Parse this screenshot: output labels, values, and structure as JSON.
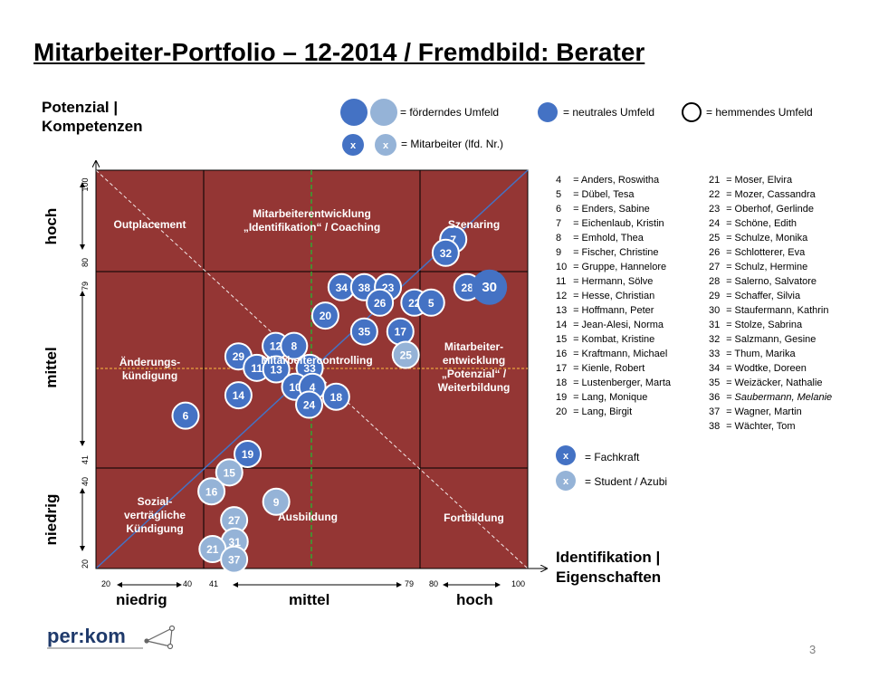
{
  "title": "Mitarbeiter-Portfolio – 12-2014 / Fremdbild: Berater",
  "y_axis": {
    "label_line1": "Potenzial |",
    "label_line2": "Kompetenzen",
    "levels": [
      "hoch",
      "mittel",
      "niedrig"
    ],
    "ticks": [
      "100",
      "80",
      "79",
      "41",
      "40",
      "20"
    ]
  },
  "x_axis": {
    "label_line1": "Identifikation |",
    "label_line2": "Eigenschaften",
    "levels": [
      "niedrig",
      "mittel",
      "hoch"
    ],
    "ticks": [
      "20",
      "40",
      "41",
      "79",
      "80",
      "100"
    ]
  },
  "legend": {
    "foerderndes": "= förderndes  Umfeld",
    "neutrales": "= neutrales  Umfeld",
    "hemmendes": "= hemmendes  Umfeld",
    "mitarbeiter": "= Mitarbeiter  (lfd.  Nr.)",
    "marker": "x",
    "fachkraft": "= Fachkraft",
    "student": "= Student  / Azubi"
  },
  "zones": [
    {
      "id": "outplacement",
      "lines": [
        "Outplacement"
      ]
    },
    {
      "id": "mitarbeiterentwicklung",
      "lines": [
        "Mitarbeiterentwicklung",
        "„Identifikation“ / Coaching"
      ]
    },
    {
      "id": "szenaring",
      "lines": [
        "Szenaring"
      ]
    },
    {
      "id": "aenderungskuendigung",
      "lines": [
        "Änderungs-",
        "kündigung"
      ]
    },
    {
      "id": "mitarbeitercontrolling",
      "lines": [
        "Mitarbeitercontrolling"
      ]
    },
    {
      "id": "mitarbeiterentwicklung-potenzial",
      "lines": [
        "Mitarbeiter-",
        "entwicklung",
        "„Potenzial“ /",
        "Weiterbildung"
      ]
    },
    {
      "id": "sozialvertraegliche",
      "lines": [
        "Sozial-",
        "verträgliche",
        "Kündigung"
      ]
    },
    {
      "id": "ausbildung",
      "lines": [
        "Ausbildung"
      ]
    },
    {
      "id": "fortbildung",
      "lines": [
        "Fortbildung"
      ]
    }
  ],
  "employees_col1": [
    {
      "nr": "4",
      "name": "= Anders, Roswitha"
    },
    {
      "nr": "5",
      "name": "= Dübel, Tesa"
    },
    {
      "nr": "6",
      "name": "= Enders, Sabine"
    },
    {
      "nr": "7",
      "name": "= Eichenlaub, Kristin"
    },
    {
      "nr": "8",
      "name": "= Emhold, Thea"
    },
    {
      "nr": "9",
      "name": "= Fischer, Christine"
    },
    {
      "nr": "10",
      "name": "= Gruppe, Hannelore"
    },
    {
      "nr": "11",
      "name": "= Hermann, Sölve"
    },
    {
      "nr": "12",
      "name": "= Hesse, Christian"
    },
    {
      "nr": "13",
      "name": "= Hoffmann, Peter"
    },
    {
      "nr": "14",
      "name": "= Jean-Alesi, Norma"
    },
    {
      "nr": "15",
      "name": "= Kombat, Kristine"
    },
    {
      "nr": "16",
      "name": "= Kraftmann, Michael"
    },
    {
      "nr": "17",
      "name": "= Kienle, Robert"
    },
    {
      "nr": "18",
      "name": "= Lustenberger, Marta"
    },
    {
      "nr": "19",
      "name": "= Lang, Monique"
    },
    {
      "nr": "20",
      "name": "= Lang, Birgit"
    }
  ],
  "employees_col2": [
    {
      "nr": "21",
      "name": "= Moser, Elvira"
    },
    {
      "nr": "22",
      "name": "= Mozer, Cassandra"
    },
    {
      "nr": "23",
      "name": "= Oberhof, Gerlinde"
    },
    {
      "nr": "24",
      "name": "= Schöne, Edith"
    },
    {
      "nr": "25",
      "name": "= Schulze, Monika"
    },
    {
      "nr": "26",
      "name": "= Schlotterer, Eva"
    },
    {
      "nr": "27",
      "name": "= Schulz, Hermine"
    },
    {
      "nr": "28",
      "name": "= Salerno, Salvatore"
    },
    {
      "nr": "29",
      "name": "= Schaffer, Silvia"
    },
    {
      "nr": "30",
      "name": "= Staufermann, Kathrin"
    },
    {
      "nr": "31",
      "name": "= Stolze, Sabrina"
    },
    {
      "nr": "32",
      "name": "= Salzmann, Gesine"
    },
    {
      "nr": "33",
      "name": "= Thum, Marika"
    },
    {
      "nr": "34",
      "name": "= Wodtke, Doreen"
    },
    {
      "nr": "35",
      "name": "= Weizäcker, Nathalie"
    },
    {
      "nr": "36",
      "name": "= Saubermann, Melanie",
      "italic": true
    },
    {
      "nr": "37",
      "name": "= Wagner, Martin"
    },
    {
      "nr": "38",
      "name": "= Wächter, Tom"
    }
  ],
  "bubbles": [
    {
      "id": "7",
      "x": 86.2,
      "y": 86.1,
      "type": "fachkraft"
    },
    {
      "id": "32",
      "x": 84.8,
      "y": 83.4,
      "type": "fachkraft"
    },
    {
      "id": "28",
      "x": 88.8,
      "y": 76.5,
      "type": "fachkraft"
    },
    {
      "id": "30",
      "x": 92.9,
      "y": 76.5,
      "type": "fachkraft",
      "large": true
    },
    {
      "id": "34",
      "x": 65.5,
      "y": 76.5,
      "type": "fachkraft"
    },
    {
      "id": "38",
      "x": 69.7,
      "y": 76.5,
      "type": "fachkraft"
    },
    {
      "id": "23",
      "x": 74.1,
      "y": 76.5,
      "type": "fachkraft"
    },
    {
      "id": "26",
      "x": 72.6,
      "y": 73.4,
      "type": "fachkraft"
    },
    {
      "id": "22",
      "x": 79.0,
      "y": 73.4,
      "type": "fachkraft"
    },
    {
      "id": "5",
      "x": 82.1,
      "y": 73.4,
      "type": "fachkraft"
    },
    {
      "id": "20",
      "x": 62.5,
      "y": 70.8,
      "type": "fachkraft"
    },
    {
      "id": "35",
      "x": 69.7,
      "y": 67.6,
      "type": "fachkraft"
    },
    {
      "id": "17",
      "x": 76.4,
      "y": 67.6,
      "type": "fachkraft"
    },
    {
      "id": "25",
      "x": 77.4,
      "y": 62.9,
      "type": "student"
    },
    {
      "id": "29",
      "x": 46.4,
      "y": 62.6,
      "type": "fachkraft"
    },
    {
      "id": "12",
      "x": 53.3,
      "y": 64.7,
      "type": "fachkraft"
    },
    {
      "id": "8",
      "x": 56.7,
      "y": 64.7,
      "type": "fachkraft"
    },
    {
      "id": "11",
      "x": 49.8,
      "y": 60.3,
      "type": "fachkraft"
    },
    {
      "id": "13",
      "x": 53.4,
      "y": 60.0,
      "type": "fachkraft"
    },
    {
      "id": "33",
      "x": 59.6,
      "y": 60.3,
      "type": "fachkraft"
    },
    {
      "id": "10",
      "x": 56.9,
      "y": 56.5,
      "type": "fachkraft"
    },
    {
      "id": "4",
      "x": 60.1,
      "y": 56.5,
      "type": "fachkraft"
    },
    {
      "id": "24",
      "x": 59.5,
      "y": 52.9,
      "type": "fachkraft"
    },
    {
      "id": "18",
      "x": 64.5,
      "y": 54.5,
      "type": "fachkraft"
    },
    {
      "id": "14",
      "x": 46.4,
      "y": 54.8,
      "type": "fachkraft"
    },
    {
      "id": "6",
      "x": 36.6,
      "y": 50.7,
      "type": "fachkraft"
    },
    {
      "id": "19",
      "x": 48.1,
      "y": 43.0,
      "type": "fachkraft"
    },
    {
      "id": "15",
      "x": 44.7,
      "y": 39.3,
      "type": "student"
    },
    {
      "id": "16",
      "x": 41.4,
      "y": 35.5,
      "type": "student"
    },
    {
      "id": "9",
      "x": 53.4,
      "y": 33.4,
      "type": "student"
    },
    {
      "id": "27",
      "x": 45.6,
      "y": 29.7,
      "type": "student"
    },
    {
      "id": "31",
      "x": 45.7,
      "y": 25.4,
      "type": "student"
    },
    {
      "id": "21",
      "x": 41.6,
      "y": 23.9,
      "type": "student"
    },
    {
      "id": "37",
      "x": 45.6,
      "y": 21.8,
      "type": "student"
    }
  ],
  "logo": {
    "text": "per:kom"
  },
  "page_number": "3",
  "colors": {
    "quadrant": "#943634",
    "fachkraft": "#4472C4",
    "student": "#95B3D7",
    "diagonal": "#4472C4",
    "hline": "#E8A33D",
    "vline": "#33A532"
  }
}
